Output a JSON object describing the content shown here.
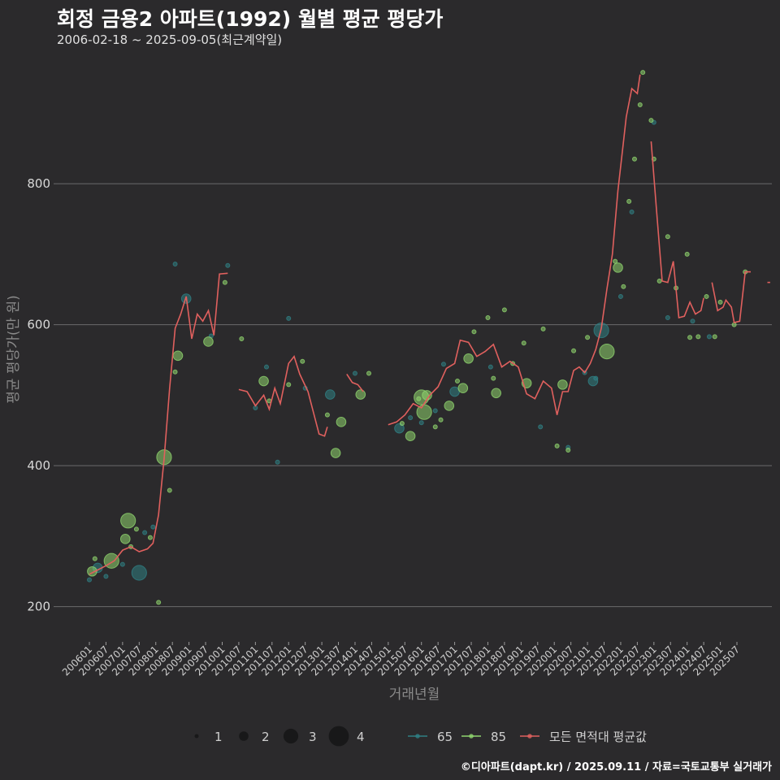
{
  "title": "회정 금용2 아파트(1992) 월별 평균 평당가",
  "subtitle": "2006-02-18 ~ 2025-09-05(최근계약일)",
  "caption": "©디아파트(dapt.kr) / 2025.09.11 / 자료=국토교통부 실거래가",
  "colors": {
    "background": "#2b2a2c",
    "grid": "#6b6b6b",
    "avg_line": "#e0605e",
    "area65": "#2f7f84",
    "area85": "#8fd46e"
  },
  "chart_data": {
    "type": "line",
    "xlabel": "거래년월",
    "ylabel": "평균 평당가(만 원)",
    "ylim": [
      150,
      980
    ],
    "yticks": [
      200,
      400,
      600,
      800
    ],
    "x_range": [
      "2006-01",
      "2025-09"
    ],
    "xticks": [
      "200601",
      "200607",
      "200701",
      "200707",
      "200801",
      "200807",
      "200901",
      "200907",
      "201001",
      "201007",
      "201101",
      "201107",
      "201201",
      "201207",
      "201301",
      "201307",
      "201401",
      "201407",
      "201501",
      "201507",
      "201601",
      "201607",
      "201701",
      "201707",
      "201801",
      "201807",
      "201901",
      "201907",
      "202001",
      "202007",
      "202101",
      "202107",
      "202201",
      "202207",
      "202301",
      "202307",
      "202401",
      "202407",
      "202501",
      "202507"
    ],
    "legend": {
      "size_title": "",
      "sizes": [
        1,
        2,
        3,
        4
      ],
      "series": [
        "65",
        "85",
        "모든 면적대 평균값"
      ]
    },
    "avg_line_segments": [
      [
        [
          "2006-01",
          246
        ],
        [
          "2006-04",
          252
        ],
        [
          "2006-07",
          258
        ],
        [
          "2006-10",
          265
        ],
        [
          "2007-01",
          280
        ],
        [
          "2007-04",
          285
        ],
        [
          "2007-07",
          278
        ],
        [
          "2007-10",
          282
        ],
        [
          "2007-12",
          290
        ],
        [
          "2008-02",
          330
        ],
        [
          "2008-04",
          410
        ],
        [
          "2008-06",
          510
        ],
        [
          "2008-08",
          595
        ],
        [
          "2008-10",
          615
        ],
        [
          "2008-12",
          640
        ],
        [
          "2009-02",
          580
        ],
        [
          "2009-04",
          615
        ],
        [
          "2009-06",
          605
        ],
        [
          "2009-08",
          620
        ],
        [
          "2009-10",
          585
        ],
        [
          "2009-12",
          672
        ],
        [
          "2010-03",
          673
        ]
      ],
      [
        [
          "2010-07",
          508
        ],
        [
          "2010-10",
          505
        ],
        [
          "2011-01",
          485
        ],
        [
          "2011-04",
          500
        ],
        [
          "2011-06",
          480
        ],
        [
          "2011-08",
          510
        ],
        [
          "2011-10",
          488
        ],
        [
          "2012-01",
          545
        ],
        [
          "2012-03",
          555
        ],
        [
          "2012-05",
          530
        ],
        [
          "2012-08",
          505
        ],
        [
          "2012-10",
          475
        ],
        [
          "2012-12",
          445
        ],
        [
          "2013-02",
          442
        ],
        [
          "2013-03",
          455
        ]
      ],
      [
        [
          "2013-10",
          530
        ],
        [
          "2013-12",
          518
        ],
        [
          "2014-02",
          515
        ],
        [
          "2014-04",
          505
        ]
      ],
      [
        [
          "2015-01",
          458
        ],
        [
          "2015-04",
          462
        ],
        [
          "2015-07",
          472
        ],
        [
          "2015-10",
          488
        ],
        [
          "2016-01",
          482
        ],
        [
          "2016-04",
          500
        ],
        [
          "2016-07",
          512
        ],
        [
          "2016-10",
          538
        ],
        [
          "2017-01",
          545
        ],
        [
          "2017-03",
          578
        ],
        [
          "2017-06",
          575
        ],
        [
          "2017-09",
          555
        ],
        [
          "2017-12",
          562
        ],
        [
          "2018-03",
          572
        ],
        [
          "2018-06",
          540
        ],
        [
          "2018-09",
          548
        ],
        [
          "2018-12",
          540
        ],
        [
          "2019-03",
          502
        ],
        [
          "2019-06",
          495
        ],
        [
          "2019-09",
          520
        ],
        [
          "2019-12",
          510
        ],
        [
          "2020-02",
          472
        ],
        [
          "2020-04",
          505
        ],
        [
          "2020-06",
          505
        ],
        [
          "2020-08",
          535
        ],
        [
          "2020-10",
          540
        ],
        [
          "2020-12",
          532
        ],
        [
          "2021-02",
          545
        ],
        [
          "2021-04",
          565
        ],
        [
          "2021-06",
          595
        ],
        [
          "2021-08",
          650
        ],
        [
          "2021-10",
          700
        ],
        [
          "2021-12",
          790
        ],
        [
          "2022-02",
          860
        ],
        [
          "2022-03",
          895
        ],
        [
          "2022-05",
          935
        ],
        [
          "2022-07",
          928
        ],
        [
          "2022-08",
          955
        ]
      ],
      [
        [
          "2022-12",
          860
        ],
        [
          "2023-02",
          760
        ],
        [
          "2023-04",
          662
        ],
        [
          "2023-06",
          660
        ],
        [
          "2023-08",
          690
        ],
        [
          "2023-10",
          610
        ],
        [
          "2023-12",
          612
        ],
        [
          "2024-02",
          632
        ],
        [
          "2024-04",
          615
        ],
        [
          "2024-06",
          620
        ],
        [
          "2024-07",
          638
        ]
      ],
      [
        [
          "2024-10",
          660
        ],
        [
          "2024-12",
          620
        ],
        [
          "2025-02",
          625
        ],
        [
          "2025-03",
          635
        ],
        [
          "2025-05",
          625
        ],
        [
          "2025-06",
          603
        ],
        [
          "2025-08",
          605
        ],
        [
          "2025-10",
          675
        ],
        [
          "2025-12",
          675
        ]
      ],
      [
        [
          "2026-06",
          660
        ],
        [
          "2026-07",
          660
        ]
      ]
    ],
    "points_65": [
      [
        "2006-01",
        238,
        1
      ],
      [
        "2006-04",
        255,
        2
      ],
      [
        "2006-07",
        243,
        1
      ],
      [
        "2007-01",
        260,
        1
      ],
      [
        "2007-07",
        248,
        3
      ],
      [
        "2007-09",
        305,
        1
      ],
      [
        "2007-12",
        313,
        1
      ],
      [
        "2008-08",
        686,
        1
      ],
      [
        "2008-12",
        637,
        2
      ],
      [
        "2009-09",
        584,
        1
      ],
      [
        "2010-03",
        684,
        1
      ],
      [
        "2011-01",
        482,
        1
      ],
      [
        "2011-05",
        540,
        1
      ],
      [
        "2011-09",
        405,
        1
      ],
      [
        "2012-01",
        609,
        1
      ],
      [
        "2012-07",
        510,
        1
      ],
      [
        "2013-04",
        501,
        2
      ],
      [
        "2014-01",
        531,
        1
      ],
      [
        "2015-05",
        453,
        2
      ],
      [
        "2015-09",
        468,
        1
      ],
      [
        "2016-01",
        461,
        1
      ],
      [
        "2016-06",
        478,
        1
      ],
      [
        "2016-09",
        544,
        1
      ],
      [
        "2017-01",
        505,
        2
      ],
      [
        "2018-02",
        540,
        1
      ],
      [
        "2019-08",
        455,
        1
      ],
      [
        "2020-06",
        426,
        1
      ],
      [
        "2020-12",
        532,
        1
      ],
      [
        "2021-03",
        520,
        2
      ],
      [
        "2021-04",
        524,
        1
      ],
      [
        "2021-06",
        592,
        3
      ],
      [
        "2022-01",
        640,
        1
      ],
      [
        "2022-05",
        760,
        1
      ],
      [
        "2023-01",
        887,
        1
      ],
      [
        "2023-06",
        610,
        1
      ],
      [
        "2024-03",
        605,
        1
      ],
      [
        "2024-09",
        583,
        1
      ]
    ],
    "points_85": [
      [
        "2006-02",
        250,
        2
      ],
      [
        "2006-03",
        268,
        1
      ],
      [
        "2006-09",
        265,
        3
      ],
      [
        "2007-02",
        296,
        2
      ],
      [
        "2007-03",
        322,
        3
      ],
      [
        "2007-04",
        285,
        1
      ],
      [
        "2007-06",
        310,
        1
      ],
      [
        "2007-11",
        298,
        1
      ],
      [
        "2008-02",
        206,
        1
      ],
      [
        "2008-04",
        412,
        3
      ],
      [
        "2008-06",
        365,
        1
      ],
      [
        "2008-08",
        533,
        1
      ],
      [
        "2008-09",
        556,
        2
      ],
      [
        "2009-08",
        576,
        2
      ],
      [
        "2010-02",
        660,
        1
      ],
      [
        "2010-08",
        580,
        1
      ],
      [
        "2011-04",
        520,
        2
      ],
      [
        "2011-06",
        492,
        1
      ],
      [
        "2012-01",
        515,
        1
      ],
      [
        "2012-06",
        548,
        1
      ],
      [
        "2013-03",
        472,
        1
      ],
      [
        "2013-06",
        418,
        2
      ],
      [
        "2013-08",
        462,
        2
      ],
      [
        "2014-03",
        501,
        2
      ],
      [
        "2014-06",
        531,
        1
      ],
      [
        "2015-06",
        460,
        1
      ],
      [
        "2015-09",
        442,
        2
      ],
      [
        "2015-12",
        495,
        1
      ],
      [
        "2016-01",
        497,
        3
      ],
      [
        "2016-02",
        476,
        3
      ],
      [
        "2016-03",
        500,
        2
      ],
      [
        "2016-06",
        455,
        1
      ],
      [
        "2016-08",
        465,
        1
      ],
      [
        "2016-11",
        485,
        2
      ],
      [
        "2017-02",
        520,
        1
      ],
      [
        "2017-04",
        510,
        2
      ],
      [
        "2017-06",
        552,
        2
      ],
      [
        "2017-08",
        590,
        1
      ],
      [
        "2018-01",
        610,
        1
      ],
      [
        "2018-03",
        524,
        1
      ],
      [
        "2018-04",
        503,
        2
      ],
      [
        "2018-07",
        621,
        1
      ],
      [
        "2018-10",
        545,
        1
      ],
      [
        "2019-02",
        574,
        1
      ],
      [
        "2019-03",
        517,
        2
      ],
      [
        "2019-09",
        594,
        1
      ],
      [
        "2020-02",
        428,
        1
      ],
      [
        "2020-04",
        515,
        2
      ],
      [
        "2020-06",
        422,
        1
      ],
      [
        "2020-08",
        563,
        1
      ],
      [
        "2021-01",
        582,
        1
      ],
      [
        "2021-08",
        562,
        3
      ],
      [
        "2021-11",
        690,
        1
      ],
      [
        "2021-12",
        681,
        2
      ],
      [
        "2022-02",
        654,
        1
      ],
      [
        "2022-04",
        775,
        1
      ],
      [
        "2022-06",
        835,
        1
      ],
      [
        "2022-08",
        912,
        1
      ],
      [
        "2022-09",
        958,
        1
      ],
      [
        "2022-12",
        890,
        1
      ],
      [
        "2023-01",
        835,
        1
      ],
      [
        "2023-03",
        662,
        1
      ],
      [
        "2023-06",
        725,
        1
      ],
      [
        "2023-09",
        652,
        1
      ],
      [
        "2024-01",
        700,
        1
      ],
      [
        "2024-02",
        582,
        1
      ],
      [
        "2024-05",
        583,
        1
      ],
      [
        "2024-08",
        640,
        1
      ],
      [
        "2024-11",
        583,
        1
      ],
      [
        "2025-01",
        632,
        1
      ],
      [
        "2025-06",
        600,
        1
      ],
      [
        "2025-10",
        675,
        1
      ]
    ]
  }
}
